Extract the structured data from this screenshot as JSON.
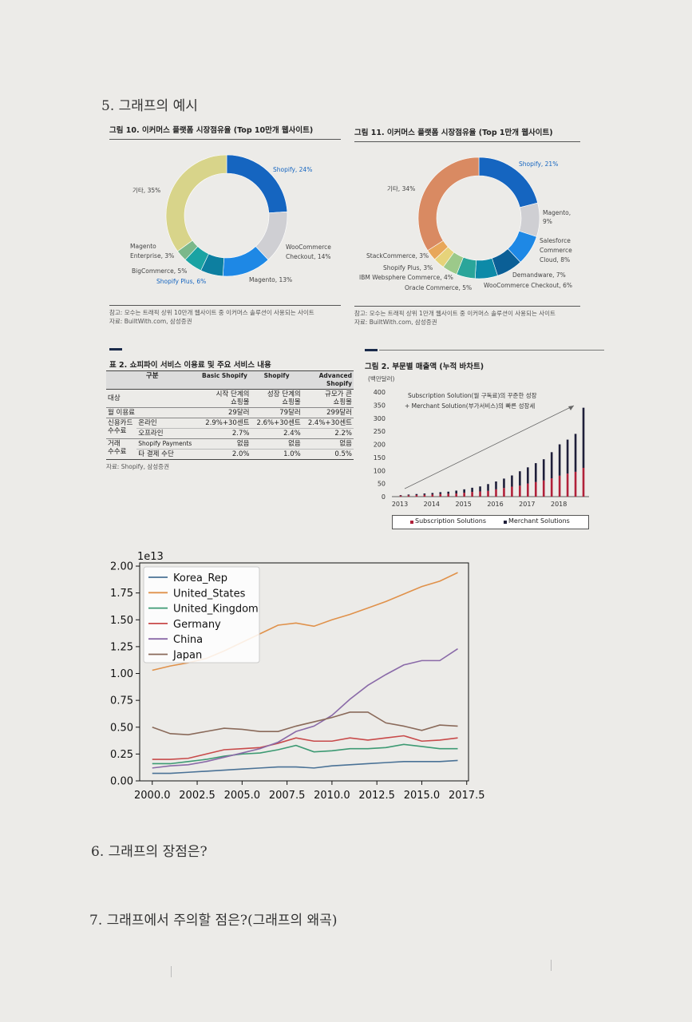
{
  "sections": {
    "s5": "5. 그래프의 예시",
    "s6": "6. 그래프의 장점은?",
    "s7": "7. 그래프에서 주의할 점은?(그래프의 왜곡)"
  },
  "fig10": {
    "caption": "그림 10. 이커머스 플랫폼 시장점유율 (Top 10만개 웹사이트)",
    "note1": "참고: 모수는 트래픽 상위 10만개 웹사이트 중 이커머스 솔루션이 사용되는 사이트",
    "note2": "자료: BuiltWith.com, 삼성증권",
    "labels": {
      "shopify": "Shopify, 24%",
      "woo1": "WooCommerce",
      "woo2": "Checkout, 14%",
      "magento": "Magento, 13%",
      "shopifyplus": "Shopify Plus, 6%",
      "bigcommerce": "BigCommerce, 5%",
      "magent1": "Magento",
      "magent2": "Enterprise, 3%",
      "other": "기타, 35%"
    }
  },
  "fig11": {
    "caption": "그림 11. 이커머스 플랫폼 시장점유율 (Top 1만개 웹사이트)",
    "note1": "참고: 모수는 트래픽 상위 1만개 웹사이트 중 이커머스 솔루션이 사용되는 사이트",
    "note2": "자료: BuiltWith.com, 삼성증권",
    "labels": {
      "shopify": "Shopify, 21%",
      "mag1": "Magento,",
      "mag2": "9%",
      "sf1": "Salesforce",
      "sf2": "Commerce",
      "sf3": "Cloud, 8%",
      "demand": "Demandware, 7%",
      "woo": "WooCommerce Checkout, 6%",
      "oracle": "Oracle Commerce, 5%",
      "ibm": "IBM Websphere Commerce, 4%",
      "shopplus": "Shopify Plus, 3%",
      "stack": "StackCommerce, 3%",
      "other": "기타, 34%"
    }
  },
  "table2": {
    "caption": "표 2. 쇼피파이 서비스 이용료 및 주요 서비스 내용",
    "h_cat": "구분",
    "h_basic": "Basic Shopify",
    "h_shopify": "Shopify",
    "h_adv1": "Advanced",
    "h_adv2": "Shopify",
    "r1_label": "대상",
    "r1_basic": [
      "시작 단계의",
      "쇼핑몰"
    ],
    "r1_shop": [
      "성장 단계의",
      "쇼핑몰"
    ],
    "r1_adv": [
      "규모가 큰",
      "쇼핑몰"
    ],
    "r2_label": "월 이용료",
    "r2": [
      "29달러",
      "79달러",
      "299달러"
    ],
    "r3_label1": "신용카드",
    "r3_label2": "수수료",
    "r3_sub": "온라인",
    "r3": [
      "2.9%+30센트",
      "2.6%+30센트",
      "2.4%+30센트"
    ],
    "r4_sub": "오프라인",
    "r4": [
      "2.7%",
      "2.4%",
      "2.2%"
    ],
    "r5_label1": "거래",
    "r5_label2": "수수료",
    "r5_sub": "Shopify Payments",
    "r5": [
      "없음",
      "없음",
      "없음"
    ],
    "r6_sub": "타 결제 수단",
    "r6": [
      "2.0%",
      "1.0%",
      "0.5%"
    ],
    "source": "자료: Shopify, 삼성증권"
  },
  "fig2": {
    "caption": "그림 2. 부문별 매출액 (누적 바차트)",
    "unit": "(백만달러)",
    "annot1": "Subscription Solution(월 구독료)의 꾸준한 성장",
    "annot2": "+ Merchant Solution(부가서비스)의 빠른 성장세",
    "yticks": [
      "400",
      "350",
      "300",
      "250",
      "200",
      "150",
      "100",
      "50",
      "0"
    ],
    "xticks": [
      "2013",
      "2014",
      "2015",
      "2016",
      "2017",
      "2018"
    ],
    "legend_sub": "Subscription Solutions",
    "legend_mer": "Merchant Solutions",
    "colors": {
      "sub": "#b0213a",
      "mer": "#1f1f3a"
    }
  },
  "chart_data": [
    {
      "type": "pie",
      "title": "그림 10. 이커머스 플랫폼 시장점유율 (Top 10만개 웹사이트)",
      "categories": [
        "Shopify",
        "WooCommerce Checkout",
        "Magento",
        "Shopify Plus",
        "BigCommerce",
        "Magento Enterprise",
        "기타"
      ],
      "values": [
        24,
        14,
        13,
        6,
        5,
        3,
        35
      ],
      "colors": [
        "#1565c0",
        "#cfcfd3",
        "#1e88e5",
        "#0d7fa0",
        "#1aa3a3",
        "#7bb88a",
        "#d8d48a"
      ]
    },
    {
      "type": "pie",
      "title": "그림 11. 이커머스 플랫폼 시장점유율 (Top 1만개 웹사이트)",
      "categories": [
        "Shopify",
        "Magento",
        "Salesforce Commerce Cloud",
        "Demandware",
        "WooCommerce Checkout",
        "Oracle Commerce",
        "IBM Websphere Commerce",
        "Shopify Plus",
        "StackCommerce",
        "기타"
      ],
      "values": [
        21,
        9,
        8,
        7,
        6,
        5,
        4,
        3,
        3,
        34
      ],
      "colors": [
        "#1565c0",
        "#cfcfd3",
        "#1e88e5",
        "#0b5f96",
        "#0d8aa8",
        "#2aa59a",
        "#9cc98a",
        "#e6d37a",
        "#e8a75a",
        "#d98a62"
      ]
    },
    {
      "type": "bar",
      "title": "그림 2. 부문별 매출액 (누적 바차트)",
      "ylabel": "(백만달러)",
      "ylim": [
        0,
        400
      ],
      "categories": [
        "2013Q1",
        "2013Q2",
        "2013Q3",
        "2013Q4",
        "2014Q1",
        "2014Q2",
        "2014Q3",
        "2014Q4",
        "2015Q1",
        "2015Q2",
        "2015Q3",
        "2015Q4",
        "2016Q1",
        "2016Q2",
        "2016Q3",
        "2016Q4",
        "2017Q1",
        "2017Q2",
        "2017Q3",
        "2017Q4",
        "2018Q1",
        "2018Q2",
        "2018Q3",
        "2018Q4"
      ],
      "series": [
        {
          "name": "Subscription Solutions",
          "values": [
            4,
            5,
            6,
            7,
            8,
            10,
            11,
            12,
            15,
            18,
            20,
            22,
            28,
            33,
            38,
            42,
            50,
            56,
            62,
            70,
            80,
            88,
            95,
            110
          ]
        },
        {
          "name": "Merchant Solutions",
          "values": [
            2,
            3,
            4,
            5,
            6,
            7,
            8,
            11,
            13,
            16,
            19,
            26,
            30,
            36,
            43,
            55,
            62,
            72,
            81,
            100,
            120,
            130,
            145,
            230
          ]
        }
      ]
    },
    {
      "type": "line",
      "multiplier_label": "1e13",
      "x": [
        2000,
        2001,
        2002,
        2003,
        2004,
        2005,
        2006,
        2007,
        2008,
        2009,
        2010,
        2011,
        2012,
        2013,
        2014,
        2015,
        2016,
        2017
      ],
      "xticks": [
        "2000.0",
        "2002.5",
        "2005.0",
        "2007.5",
        "2010.0",
        "2012.5",
        "2015.0",
        "2017.5"
      ],
      "yticks": [
        "0.00",
        "0.25",
        "0.50",
        "0.75",
        "1.00",
        "1.25",
        "1.50",
        "1.75",
        "2.00"
      ],
      "xlim": [
        1999.3,
        2017.6
      ],
      "ylim": [
        0.0,
        2.03
      ],
      "legend_position": "top-left",
      "series": [
        {
          "name": "Korea_Rep",
          "color": "#4a7296",
          "values": [
            0.07,
            0.07,
            0.08,
            0.09,
            0.1,
            0.11,
            0.12,
            0.13,
            0.13,
            0.12,
            0.14,
            0.15,
            0.16,
            0.17,
            0.18,
            0.18,
            0.18,
            0.19
          ]
        },
        {
          "name": "United_States",
          "color": "#e0914a",
          "values": [
            1.03,
            1.07,
            1.1,
            1.14,
            1.21,
            1.29,
            1.37,
            1.45,
            1.47,
            1.44,
            1.5,
            1.55,
            1.61,
            1.67,
            1.74,
            1.81,
            1.86,
            1.94
          ]
        },
        {
          "name": "United_Kingdom",
          "color": "#3d9a73",
          "values": [
            0.16,
            0.16,
            0.18,
            0.2,
            0.23,
            0.25,
            0.26,
            0.29,
            0.33,
            0.27,
            0.28,
            0.3,
            0.3,
            0.31,
            0.34,
            0.32,
            0.3,
            0.3
          ]
        },
        {
          "name": "Germany",
          "color": "#c84a4a",
          "values": [
            0.2,
            0.2,
            0.21,
            0.25,
            0.29,
            0.3,
            0.31,
            0.35,
            0.4,
            0.37,
            0.37,
            0.4,
            0.38,
            0.4,
            0.42,
            0.37,
            0.38,
            0.4
          ]
        },
        {
          "name": "China",
          "color": "#8a6aa8",
          "values": [
            0.12,
            0.14,
            0.15,
            0.18,
            0.22,
            0.26,
            0.3,
            0.36,
            0.46,
            0.51,
            0.61,
            0.76,
            0.89,
            0.99,
            1.08,
            1.12,
            1.12,
            1.23
          ]
        },
        {
          "name": "Japan",
          "color": "#8a6a5a",
          "values": [
            0.5,
            0.44,
            0.43,
            0.46,
            0.49,
            0.48,
            0.46,
            0.46,
            0.51,
            0.55,
            0.59,
            0.64,
            0.64,
            0.54,
            0.51,
            0.47,
            0.52,
            0.51
          ]
        }
      ]
    }
  ]
}
